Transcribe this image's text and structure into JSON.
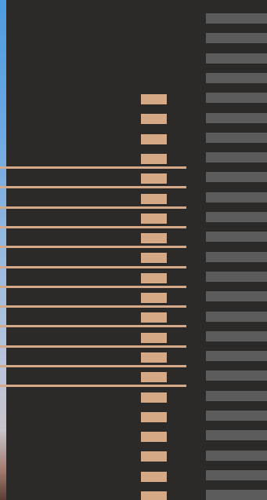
{
  "colors": {
    "background": "#2c2a28",
    "accent_tan": "#d5a985",
    "line_tan": "#d3a98a",
    "bar_gray": "#5d5c5c",
    "edge_sky_top": "#4d9be0",
    "edge_sky_bottom": "#5b3f35"
  },
  "pattern": {
    "horizontal_line_count": 12,
    "tan_block_count": 21,
    "gray_bar_count": 25
  }
}
